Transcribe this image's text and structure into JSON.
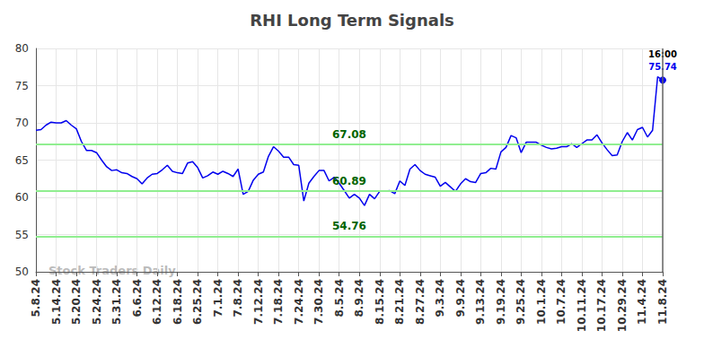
{
  "chart_data": {
    "type": "line",
    "title": "RHI Long Term Signals",
    "color": "#0000ee",
    "grid": true,
    "ylim": [
      50,
      80
    ],
    "yticks": [
      50,
      55,
      60,
      65,
      70,
      75,
      80
    ],
    "categories": [
      "5.8.24",
      null,
      null,
      null,
      "5.14.24",
      null,
      null,
      null,
      "5.20.24",
      null,
      null,
      null,
      "5.24.24",
      null,
      null,
      null,
      "5.31.24",
      null,
      null,
      null,
      "6.6.24",
      null,
      null,
      null,
      "6.12.24",
      null,
      null,
      null,
      "6.18.24",
      null,
      null,
      null,
      "6.25.24",
      null,
      null,
      null,
      "7.1.24",
      null,
      null,
      null,
      "7.8.24",
      null,
      null,
      null,
      "7.12.24",
      null,
      null,
      null,
      "7.18.24",
      null,
      null,
      null,
      "7.24.24",
      null,
      null,
      null,
      "7.30.24",
      null,
      null,
      null,
      "8.5.24",
      null,
      null,
      null,
      "8.9.24",
      null,
      null,
      null,
      "8.15.24",
      null,
      null,
      null,
      "8.21.24",
      null,
      null,
      null,
      "8.27.24",
      null,
      null,
      null,
      "9.3.24",
      null,
      null,
      null,
      "9.9.24",
      null,
      null,
      null,
      "9.13.24",
      null,
      null,
      null,
      "9.19.24",
      null,
      null,
      null,
      "9.25.24",
      null,
      null,
      null,
      "10.1.24",
      null,
      null,
      null,
      "10.7.24",
      null,
      null,
      null,
      "10.11.24",
      null,
      null,
      null,
      "10.17.24",
      null,
      null,
      null,
      "10.29.24",
      null,
      null,
      null,
      "11.4.24",
      null,
      null,
      null,
      "11.8.24"
    ],
    "values": [
      69.0,
      69.1,
      69.7,
      70.1,
      70.0,
      70.0,
      70.3,
      69.7,
      69.2,
      67.5,
      66.3,
      66.3,
      66.0,
      65.0,
      64.1,
      63.6,
      63.7,
      63.3,
      63.2,
      62.8,
      62.5,
      61.8,
      62.6,
      63.1,
      63.2,
      63.7,
      64.3,
      63.5,
      63.3,
      63.2,
      64.6,
      64.8,
      64.0,
      62.6,
      62.9,
      63.4,
      63.1,
      63.5,
      63.2,
      62.8,
      63.8,
      60.4,
      60.8,
      62.3,
      63.1,
      63.4,
      65.5,
      66.8,
      66.2,
      65.4,
      65.4,
      64.4,
      64.3,
      59.5,
      61.9,
      62.8,
      63.6,
      63.6,
      62.2,
      62.7,
      61.9,
      60.9,
      59.9,
      60.4,
      59.9,
      58.9,
      60.4,
      59.8,
      60.8,
      60.8,
      60.9,
      60.5,
      62.2,
      61.6,
      63.8,
      64.4,
      63.6,
      63.1,
      62.9,
      62.7,
      61.5,
      62.0,
      61.4,
      60.8,
      61.8,
      62.5,
      62.1,
      62.0,
      63.2,
      63.3,
      63.9,
      63.8,
      66.1,
      66.7,
      68.3,
      68.0,
      66.0,
      67.4,
      67.4,
      67.4,
      67.0,
      66.7,
      66.5,
      66.6,
      66.8,
      66.8,
      67.2,
      66.7,
      67.2,
      67.7,
      67.7,
      68.4,
      67.3,
      66.4,
      65.6,
      65.7,
      67.5,
      68.7,
      67.7,
      69.1,
      69.4,
      68.1,
      69.0,
      76.2,
      75.74
    ],
    "reference_lines": [
      67.08,
      60.89,
      54.76
    ],
    "last_point_label": "16:00",
    "watermark": "Stock Traders Daily"
  }
}
